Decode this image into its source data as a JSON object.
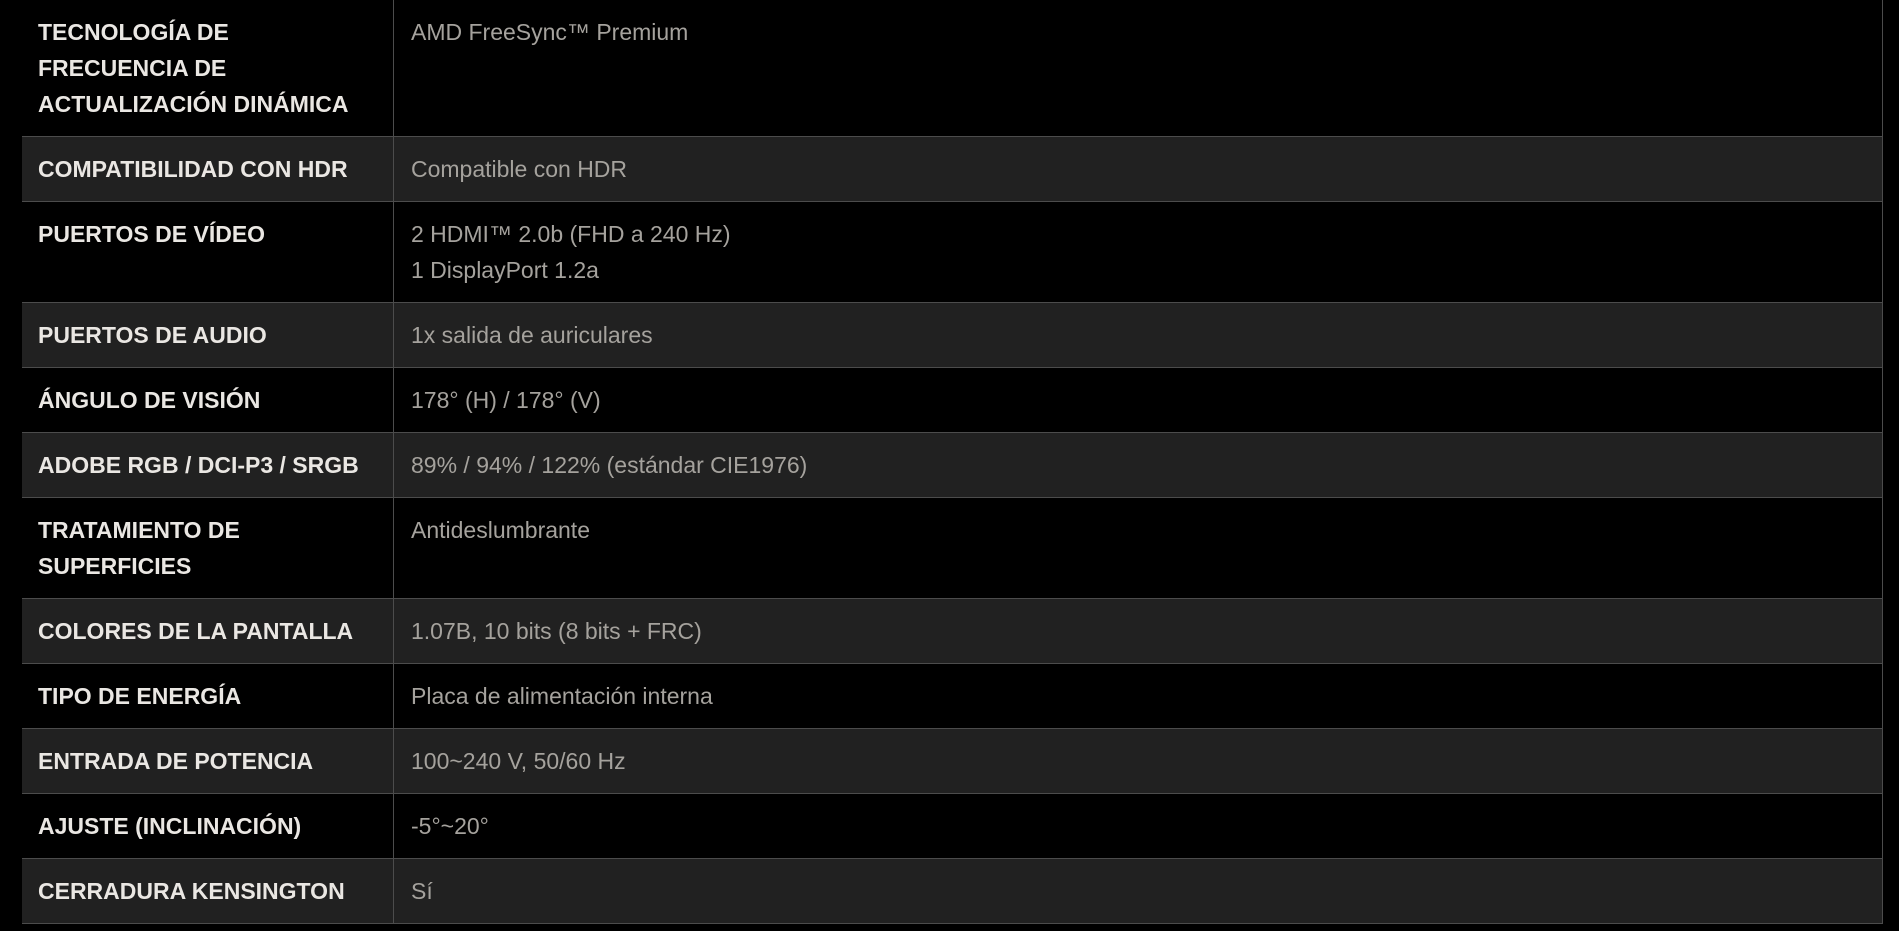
{
  "page": {
    "background_color": "#000000"
  },
  "table": {
    "colors": {
      "row_background": "#000000",
      "row_alt_background": "#212121",
      "divider": "#4c4c4c",
      "label_text": "#eae7e3",
      "value_text": "#a5a29d"
    },
    "rows": [
      {
        "label": "TECNOLOGÍA DE FRECUENCIA DE ACTUALIZACIÓN DINÁMICA",
        "value_lines": [
          "AMD FreeSync™ Premium"
        ]
      },
      {
        "label": "COMPATIBILIDAD CON HDR",
        "value_lines": [
          "Compatible con HDR"
        ]
      },
      {
        "label": "PUERTOS DE VÍDEO",
        "value_lines": [
          "2 HDMI™ 2.0b (FHD a 240 Hz)",
          "1 DisplayPort 1.2a"
        ]
      },
      {
        "label": "PUERTOS DE AUDIO",
        "value_lines": [
          "1x salida de auriculares"
        ]
      },
      {
        "label": "ÁNGULO DE VISIÓN",
        "value_lines": [
          "178° (H) / 178° (V)"
        ]
      },
      {
        "label": "ADOBE RGB / DCI-P3 / SRGB",
        "value_lines": [
          "89% / 94% / 122% (estándar CIE1976)"
        ]
      },
      {
        "label": "TRATAMIENTO DE SUPERFICIES",
        "value_lines": [
          "Antideslumbrante"
        ]
      },
      {
        "label": "COLORES DE LA PANTALLA",
        "value_lines": [
          "1.07B, 10 bits (8 bits + FRC)"
        ]
      },
      {
        "label": "TIPO DE ENERGÍA",
        "value_lines": [
          "Placa de alimentación interna"
        ]
      },
      {
        "label": "ENTRADA DE POTENCIA",
        "value_lines": [
          "100~240 V, 50/60 Hz"
        ]
      },
      {
        "label": "AJUSTE (INCLINACIÓN)",
        "value_lines": [
          "-5°~20°"
        ]
      },
      {
        "label": "CERRADURA KENSINGTON",
        "value_lines": [
          "Sí"
        ]
      }
    ]
  }
}
